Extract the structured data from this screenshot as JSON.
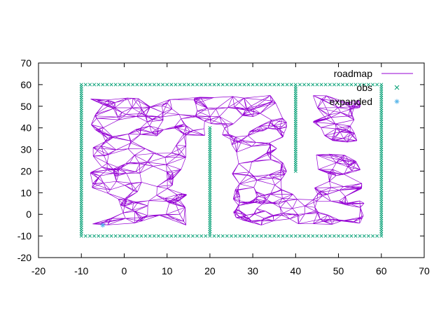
{
  "chart_data": {
    "type": "scatter",
    "title": "",
    "xlabel": "",
    "ylabel": "",
    "xlim": [
      -20,
      70
    ],
    "ylim": [
      -20,
      70
    ],
    "x_ticks": [
      -20,
      -10,
      0,
      10,
      20,
      30,
      40,
      50,
      60,
      70
    ],
    "y_ticks": [
      -20,
      -10,
      0,
      10,
      20,
      30,
      40,
      50,
      60,
      70
    ],
    "x_tick_labels": [
      "-20",
      "-10",
      "0",
      "10",
      "20",
      "30",
      "40",
      "50",
      "60",
      "70"
    ],
    "y_tick_labels": [
      "-20",
      "-10",
      "0",
      "10",
      "20",
      "30",
      "40",
      "50",
      "60",
      "70"
    ],
    "grid": false,
    "legend_position": "top-right",
    "legend": [
      "roadmap",
      "obs",
      "expanded"
    ],
    "series": [
      {
        "name": "roadmap",
        "kind": "lines",
        "color": "#9400d3",
        "regions": [
          {
            "x": [
              -8,
              15
            ],
            "y": [
              -5,
              54
            ]
          },
          {
            "x": [
              14,
              38
            ],
            "y": [
              36,
              55
            ]
          },
          {
            "x": [
              25,
              38
            ],
            "y": [
              -5,
              40
            ]
          },
          {
            "x": [
              25,
              56
            ],
            "y": [
              -5,
              12
            ]
          },
          {
            "x": [
              44,
              56
            ],
            "y": [
              5,
              55
            ]
          }
        ],
        "edges": 1400,
        "seed": 7
      },
      {
        "name": "obs",
        "kind": "points",
        "marker": "x",
        "color": "#009e73",
        "walls": [
          {
            "from": [
              -10,
              60
            ],
            "to": [
              60,
              60
            ],
            "step": 1
          },
          {
            "from": [
              -10,
              -10
            ],
            "to": [
              60,
              -10
            ],
            "step": 1
          },
          {
            "from": [
              -10,
              -10
            ],
            "to": [
              -10,
              60
            ],
            "step": 1
          },
          {
            "from": [
              60,
              -10
            ],
            "to": [
              60,
              60
            ],
            "step": 1
          },
          {
            "from": [
              20,
              -10
            ],
            "to": [
              20,
              40
            ],
            "step": 1
          },
          {
            "from": [
              40,
              20
            ],
            "to": [
              40,
              60
            ],
            "step": 1
          }
        ]
      },
      {
        "name": "expanded",
        "kind": "points",
        "marker": "star",
        "color": "#56b4e9",
        "points": [
          [
            -5,
            -5
          ]
        ]
      }
    ]
  }
}
